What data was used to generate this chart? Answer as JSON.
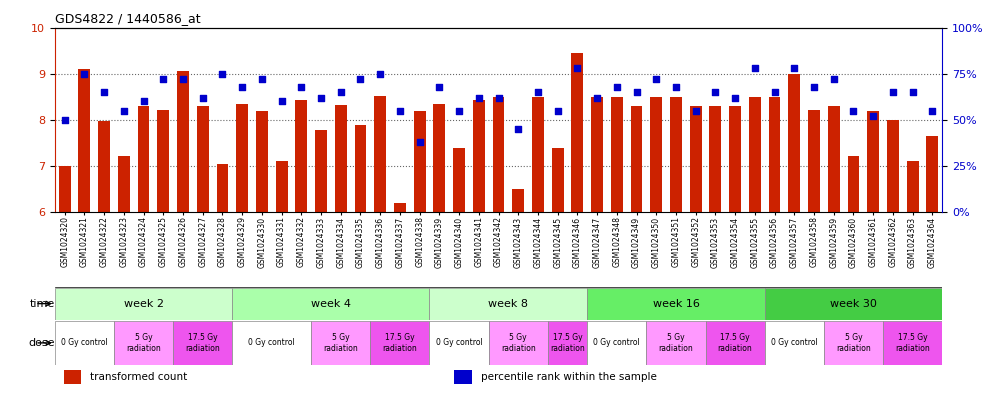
{
  "title": "GDS4822 / 1440586_at",
  "bar_color": "#cc2200",
  "dot_color": "#0000cc",
  "ylim": [
    6,
    10
  ],
  "y2lim": [
    0,
    100
  ],
  "yticks": [
    6,
    7,
    8,
    9,
    10
  ],
  "y2ticks": [
    0,
    25,
    50,
    75,
    100
  ],
  "categories": [
    "GSM1024320",
    "GSM1024321",
    "GSM1024322",
    "GSM1024323",
    "GSM1024324",
    "GSM1024325",
    "GSM1024326",
    "GSM1024327",
    "GSM1024328",
    "GSM1024329",
    "GSM1024330",
    "GSM1024331",
    "GSM1024332",
    "GSM1024333",
    "GSM1024334",
    "GSM1024335",
    "GSM1024336",
    "GSM1024337",
    "GSM1024338",
    "GSM1024339",
    "GSM1024340",
    "GSM1024341",
    "GSM1024342",
    "GSM1024343",
    "GSM1024344",
    "GSM1024345",
    "GSM1024346",
    "GSM1024347",
    "GSM1024348",
    "GSM1024349",
    "GSM1024350",
    "GSM1024351",
    "GSM1024352",
    "GSM1024353",
    "GSM1024354",
    "GSM1024355",
    "GSM1024356",
    "GSM1024357",
    "GSM1024358",
    "GSM1024359",
    "GSM1024360",
    "GSM1024361",
    "GSM1024362",
    "GSM1024363",
    "GSM1024364"
  ],
  "bar_values": [
    7.0,
    9.1,
    7.97,
    7.22,
    8.3,
    8.22,
    9.05,
    8.3,
    7.05,
    8.35,
    8.2,
    7.12,
    8.42,
    7.78,
    8.32,
    7.88,
    8.52,
    6.2,
    8.2,
    8.35,
    7.38,
    8.42,
    8.5,
    6.5,
    8.5,
    7.4,
    9.45,
    8.5,
    8.5,
    8.3,
    8.5,
    8.5,
    8.3,
    8.3,
    8.3,
    8.5,
    8.5,
    9.0,
    8.22,
    8.3,
    7.22,
    8.2,
    8.0,
    7.12,
    7.65
  ],
  "dot_values": [
    50,
    75,
    65,
    55,
    60,
    72,
    72,
    62,
    75,
    68,
    72,
    60,
    68,
    62,
    65,
    72,
    75,
    55,
    38,
    68,
    55,
    62,
    62,
    45,
    65,
    55,
    78,
    62,
    68,
    65,
    72,
    68,
    55,
    65,
    62,
    78,
    65,
    78,
    68,
    72,
    55,
    52,
    65,
    65,
    55
  ],
  "week_groups": [
    {
      "label": "week 2",
      "start": 0,
      "end": 8,
      "color": "#ccffcc"
    },
    {
      "label": "week 4",
      "start": 9,
      "end": 18,
      "color": "#aaffaa"
    },
    {
      "label": "week 8",
      "start": 19,
      "end": 26,
      "color": "#ccffcc"
    },
    {
      "label": "week 16",
      "start": 27,
      "end": 35,
      "color": "#66ee66"
    },
    {
      "label": "week 30",
      "start": 36,
      "end": 44,
      "color": "#44cc44"
    }
  ],
  "dose_groups": [
    {
      "label": "0 Gy control",
      "start": 0,
      "end": 2,
      "color": "#ffffff"
    },
    {
      "label": "5 Gy\nradiation",
      "start": 3,
      "end": 5,
      "color": "#ff99ff"
    },
    {
      "label": "17.5 Gy\nradiation",
      "start": 6,
      "end": 8,
      "color": "#ee55ee"
    },
    {
      "label": "0 Gy control",
      "start": 9,
      "end": 12,
      "color": "#ffffff"
    },
    {
      "label": "5 Gy\nradiation",
      "start": 13,
      "end": 15,
      "color": "#ff99ff"
    },
    {
      "label": "17.5 Gy\nradiation",
      "start": 16,
      "end": 18,
      "color": "#ee55ee"
    },
    {
      "label": "0 Gy control",
      "start": 19,
      "end": 21,
      "color": "#ffffff"
    },
    {
      "label": "5 Gy\nradiation",
      "start": 22,
      "end": 24,
      "color": "#ff99ff"
    },
    {
      "label": "17.5 Gy\nradiation",
      "start": 25,
      "end": 26,
      "color": "#ee55ee"
    },
    {
      "label": "0 Gy control",
      "start": 27,
      "end": 29,
      "color": "#ffffff"
    },
    {
      "label": "5 Gy\nradiation",
      "start": 30,
      "end": 32,
      "color": "#ff99ff"
    },
    {
      "label": "17.5 Gy\nradiation",
      "start": 33,
      "end": 35,
      "color": "#ee55ee"
    },
    {
      "label": "0 Gy control",
      "start": 36,
      "end": 38,
      "color": "#ffffff"
    },
    {
      "label": "5 Gy\nradiation",
      "start": 39,
      "end": 41,
      "color": "#ff99ff"
    },
    {
      "label": "17.5 Gy\nradiation",
      "start": 42,
      "end": 44,
      "color": "#ee55ee"
    }
  ],
  "legend_bar_label": "transformed count",
  "legend_dot_label": "percentile rank within the sample",
  "bar_color_legend": "#cc2200",
  "dot_color_legend": "#0000cc"
}
